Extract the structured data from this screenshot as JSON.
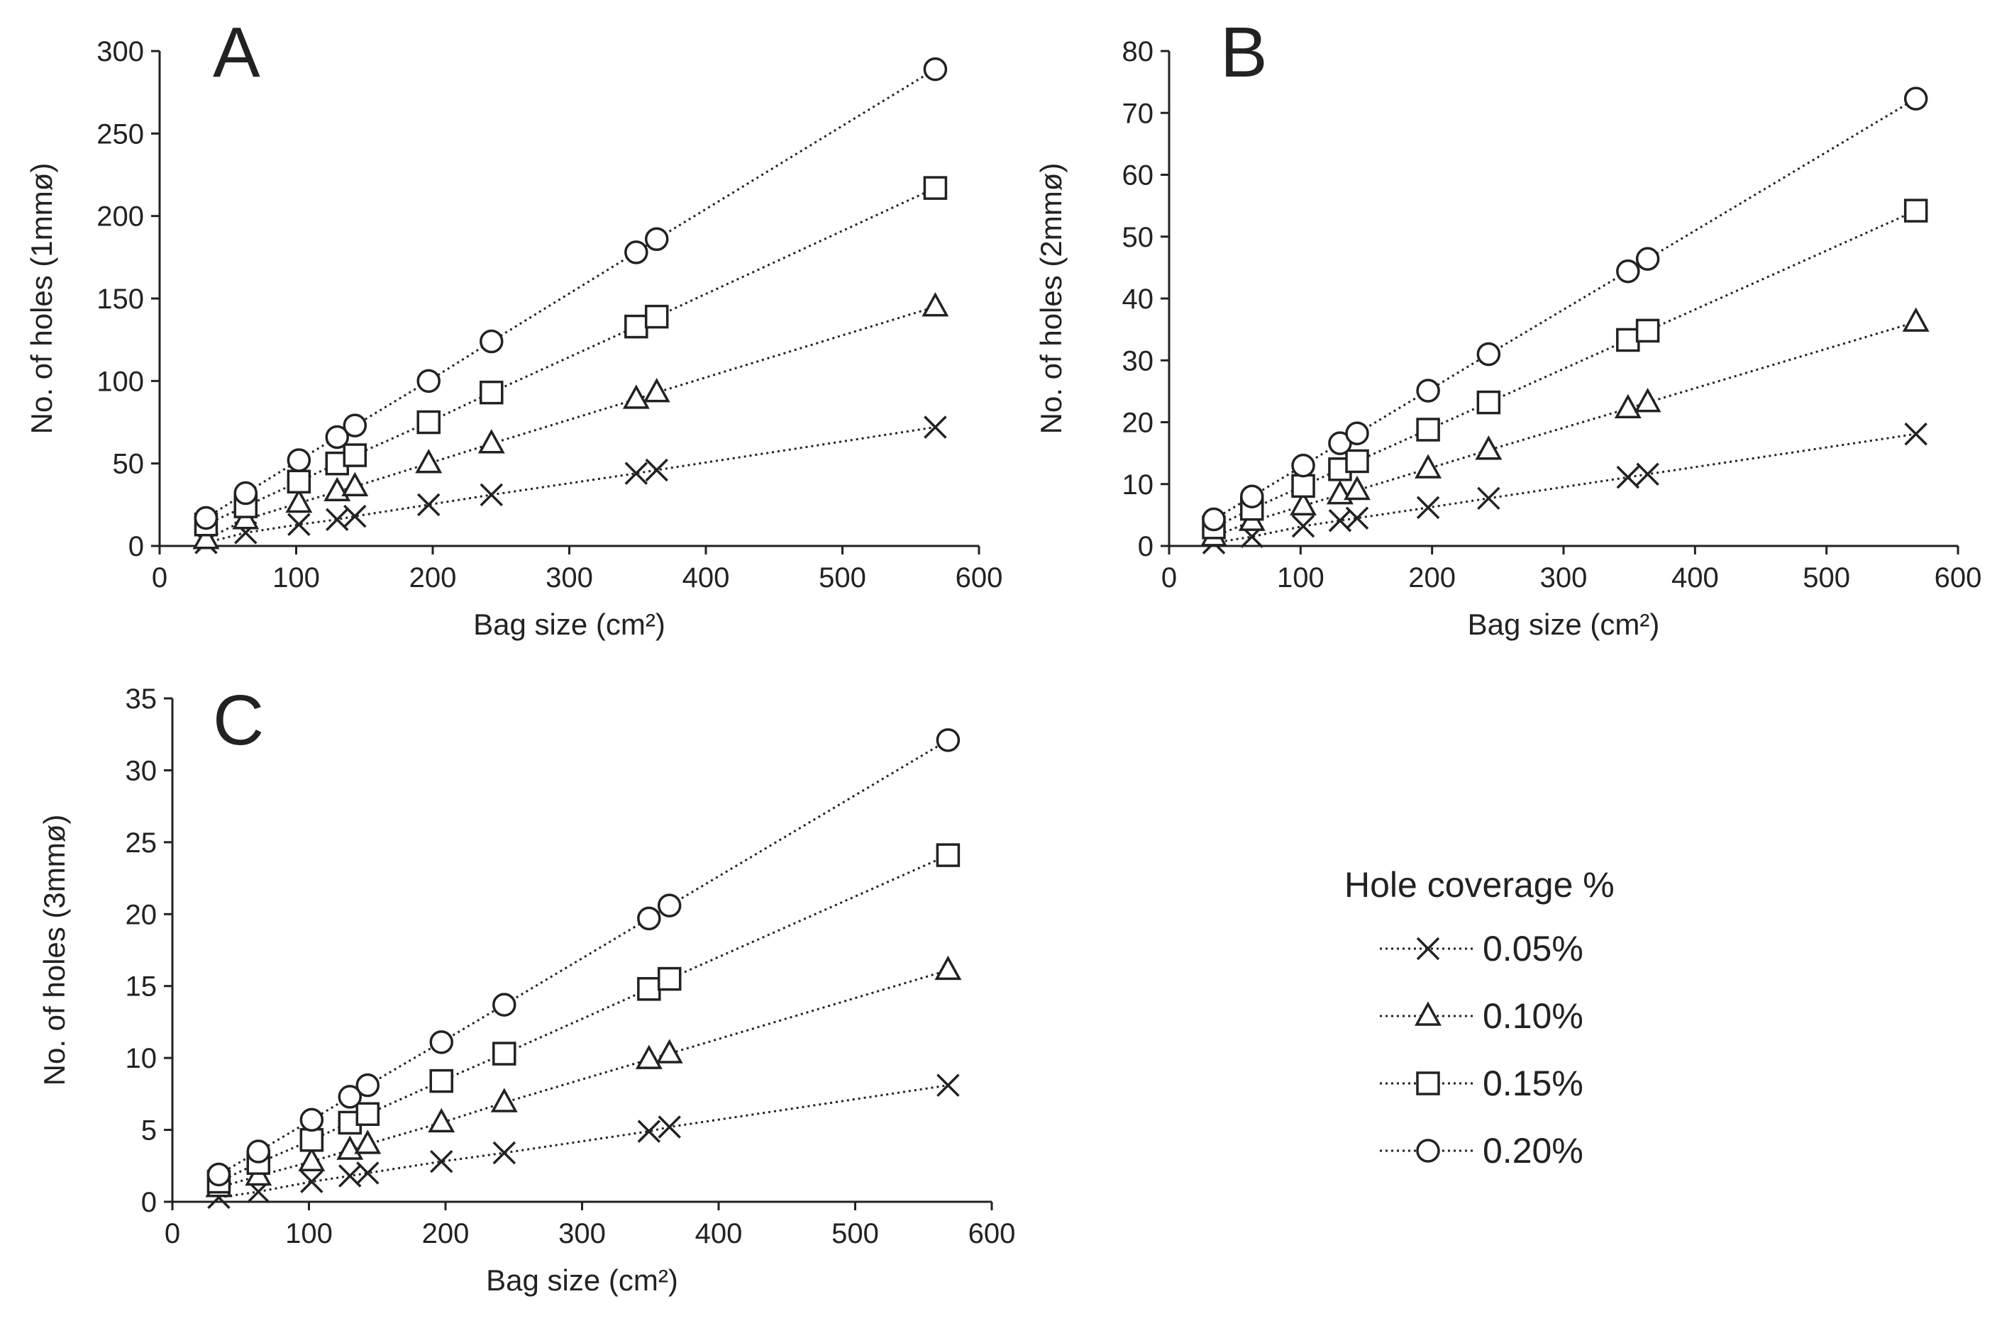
{
  "figure": {
    "legend": {
      "title": "Hole coverage %",
      "entries": [
        "0.05%",
        "0.10%",
        "0.15%",
        "0.20%"
      ]
    }
  },
  "chart_data": [
    {
      "type": "line",
      "panel": "A",
      "xlabel": "Bag size (cm²)",
      "ylabel": "No. of holes (1mmø)",
      "xlim": [
        0,
        600
      ],
      "ylim": [
        0,
        300
      ],
      "xticks": [
        0,
        100,
        200,
        300,
        400,
        500,
        600
      ],
      "yticks": [
        0,
        50,
        100,
        150,
        200,
        250,
        300
      ],
      "x": [
        34,
        63,
        102,
        130,
        143,
        197,
        243,
        349,
        364,
        568
      ],
      "series": [
        {
          "name": "0.05%",
          "marker": "x",
          "values": [
            2,
            8,
            13,
            16,
            18,
            25,
            31,
            44,
            46,
            72
          ]
        },
        {
          "name": "0.10%",
          "marker": "triangle",
          "values": [
            4,
            16,
            26,
            33,
            36,
            50,
            62,
            89,
            93,
            145
          ]
        },
        {
          "name": "0.15%",
          "marker": "square",
          "values": [
            13,
            24,
            39,
            50,
            55,
            75,
            93,
            133,
            139,
            217
          ]
        },
        {
          "name": "0.20%",
          "marker": "circle",
          "values": [
            17,
            32,
            52,
            66,
            73,
            100,
            124,
            178,
            186,
            289
          ]
        }
      ]
    },
    {
      "type": "line",
      "panel": "B",
      "xlabel": "Bag size (cm²)",
      "ylabel": "No. of holes (2mmø)",
      "xlim": [
        0,
        600
      ],
      "ylim": [
        0,
        80
      ],
      "xticks": [
        0,
        100,
        200,
        300,
        400,
        500,
        600
      ],
      "yticks": [
        0,
        10,
        20,
        30,
        40,
        50,
        60,
        70,
        80
      ],
      "x": [
        34,
        63,
        102,
        130,
        143,
        197,
        243,
        349,
        364,
        568
      ],
      "series": [
        {
          "name": "0.05%",
          "marker": "x",
          "values": [
            0.5,
            1.5,
            3.2,
            4.1,
            4.5,
            6.2,
            7.7,
            11.1,
            11.6,
            18.1
          ]
        },
        {
          "name": "0.10%",
          "marker": "triangle",
          "values": [
            1.5,
            4,
            6.5,
            8.3,
            9,
            12.5,
            15.5,
            22.2,
            23.2,
            36.2
          ]
        },
        {
          "name": "0.15%",
          "marker": "square",
          "values": [
            3,
            6,
            9.7,
            12.4,
            13.7,
            18.8,
            23.2,
            33.3,
            34.8,
            54.2
          ]
        },
        {
          "name": "0.20%",
          "marker": "circle",
          "values": [
            4.3,
            8,
            13,
            16.6,
            18.2,
            25.1,
            31,
            44.4,
            46.4,
            72.3
          ]
        }
      ]
    },
    {
      "type": "line",
      "panel": "C",
      "xlabel": "Bag size (cm²)",
      "ylabel": "No. of holes (3mmø)",
      "xlim": [
        0,
        600
      ],
      "ylim": [
        0,
        35
      ],
      "xticks": [
        0,
        100,
        200,
        300,
        400,
        500,
        600
      ],
      "yticks": [
        0,
        5,
        10,
        15,
        20,
        25,
        30,
        35
      ],
      "x": [
        34,
        63,
        102,
        130,
        143,
        197,
        243,
        349,
        364,
        568
      ],
      "series": [
        {
          "name": "0.05%",
          "marker": "x",
          "values": [
            0.3,
            0.7,
            1.4,
            1.8,
            2,
            2.8,
            3.4,
            4.9,
            5.2,
            8.1
          ]
        },
        {
          "name": "0.10%",
          "marker": "triangle",
          "values": [
            1,
            1.8,
            2.8,
            3.6,
            4,
            5.5,
            6.9,
            9.9,
            10.3,
            16.1
          ]
        },
        {
          "name": "0.15%",
          "marker": "square",
          "values": [
            1.4,
            2.7,
            4.3,
            5.5,
            6.1,
            8.4,
            10.3,
            14.8,
            15.5,
            24.1
          ]
        },
        {
          "name": "0.20%",
          "marker": "circle",
          "values": [
            1.9,
            3.5,
            5.7,
            7.3,
            8.1,
            11.1,
            13.7,
            19.7,
            20.6,
            32.1
          ]
        }
      ]
    }
  ]
}
